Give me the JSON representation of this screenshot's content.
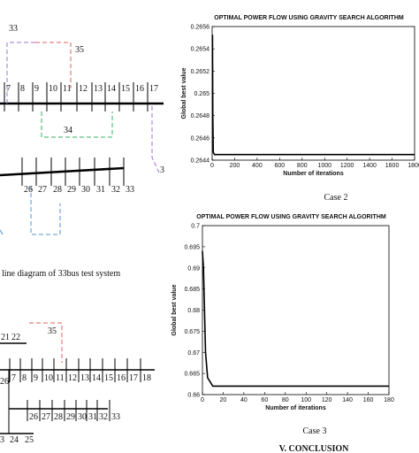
{
  "diagram_33bus": {
    "labels": [
      "33",
      "35",
      "7",
      "8",
      "9",
      "10",
      "11",
      "12",
      "13",
      "14",
      "15",
      "16",
      "17",
      "34",
      "3",
      "26",
      "27",
      "28",
      "29",
      "30",
      "31",
      "32",
      "33"
    ],
    "caption": "line diagram of 33bus test system"
  },
  "diagram_second": {
    "labels": [
      "21",
      "22",
      "35",
      "26",
      "7",
      "8",
      "9",
      "10",
      "11",
      "12",
      "13",
      "14",
      "15",
      "16",
      "17",
      "18",
      "26",
      "27",
      "28",
      "29",
      "30",
      "31",
      "32",
      "33",
      "3",
      "24",
      "25"
    ]
  },
  "chart_data": [
    {
      "type": "line",
      "title": "OPTIMAL POWER FLOW USING GRAVITY SEARCH ALGORITHM",
      "x_label": "Number of iterations",
      "y_label": "Global best value",
      "x": [
        0,
        3,
        6,
        10,
        20,
        1800
      ],
      "series": [
        {
          "color": "#000000",
          "values": [
            0.26552,
            0.26552,
            0.2648,
            0.26447,
            0.26445,
            0.26445
          ]
        }
      ],
      "xlim": [
        0,
        1800
      ],
      "xticks": [
        0,
        200,
        400,
        600,
        800,
        1000,
        1200,
        1400,
        1600,
        1800
      ],
      "ylim": [
        0.2644,
        0.2656
      ],
      "yticks": [
        0.2644,
        0.2646,
        0.2648,
        0.265,
        0.2652,
        0.2654,
        0.2656
      ],
      "grid": false
    },
    {
      "type": "line",
      "title": "OPTIMAL POWER FLOW USING GRAVITY SEARCH ALGORITHM",
      "x_label": "Number of iterations",
      "y_label": "Global best value",
      "x": [
        0,
        1,
        2,
        3,
        5,
        10,
        180
      ],
      "series": [
        {
          "color": "#000000",
          "values": [
            0.694,
            0.69,
            0.68,
            0.67,
            0.664,
            0.662,
            0.662
          ]
        }
      ],
      "xlim": [
        0,
        180
      ],
      "xticks": [
        0,
        20,
        40,
        60,
        80,
        100,
        120,
        140,
        160,
        180
      ],
      "ylim": [
        0.66,
        0.7
      ],
      "yticks": [
        0.66,
        0.665,
        0.67,
        0.675,
        0.68,
        0.685,
        0.69,
        0.695,
        0.7
      ],
      "grid": false
    }
  ],
  "captions": [
    "Case 2",
    "Case 3"
  ],
  "section_heading": "V. CONCLUSION"
}
